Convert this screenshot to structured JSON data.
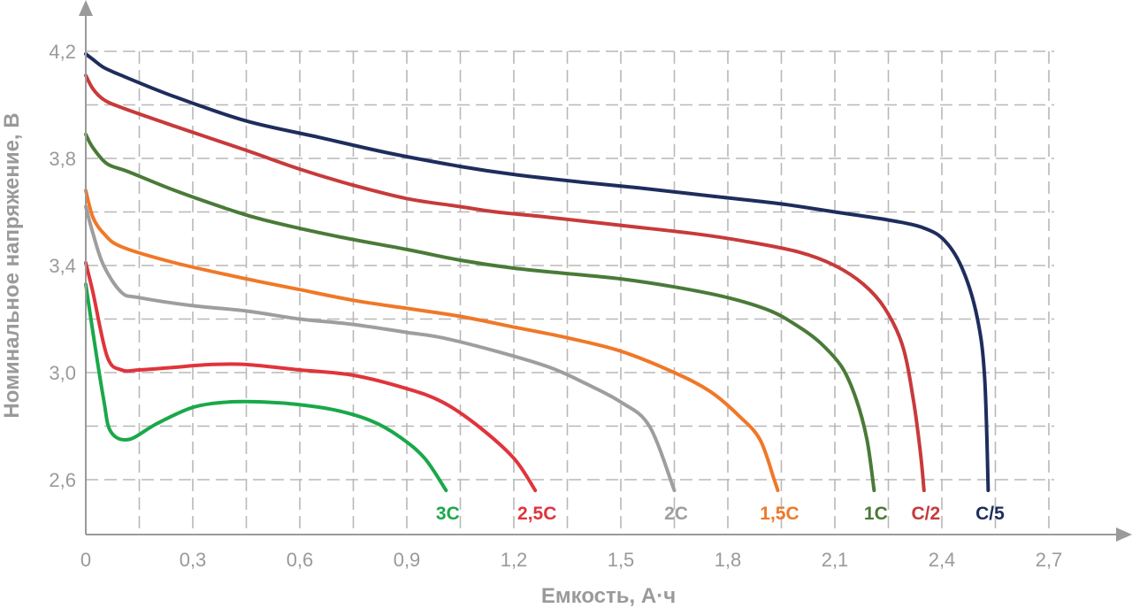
{
  "chart_data": {
    "type": "line",
    "xlabel": "Емкость, А·ч",
    "ylabel": "Номинальное напряжение, В",
    "xlim": [
      0,
      2.7
    ],
    "ylim": [
      2.45,
      4.3
    ],
    "x_ticks": [
      "0",
      "0,3",
      "0,6",
      "0,9",
      "1,2",
      "1,5",
      "1,8",
      "2,1",
      "2,4",
      "2,7"
    ],
    "x_tick_values": [
      0,
      0.3,
      0.6,
      0.9,
      1.2,
      1.5,
      1.8,
      2.1,
      2.4,
      2.7
    ],
    "y_ticks": [
      "2,6",
      "3,0",
      "3,4",
      "3,8",
      "4,2"
    ],
    "y_tick_values": [
      2.6,
      3.0,
      3.4,
      3.8,
      4.2
    ],
    "grid": true,
    "series": [
      {
        "name": "3C",
        "color": "#1aa84a",
        "points": [
          [
            0.0,
            3.33
          ],
          [
            0.02,
            3.15
          ],
          [
            0.05,
            2.9
          ],
          [
            0.07,
            2.78
          ],
          [
            0.12,
            2.75
          ],
          [
            0.2,
            2.81
          ],
          [
            0.3,
            2.87
          ],
          [
            0.4,
            2.89
          ],
          [
            0.5,
            2.89
          ],
          [
            0.6,
            2.88
          ],
          [
            0.7,
            2.86
          ],
          [
            0.8,
            2.82
          ],
          [
            0.88,
            2.76
          ],
          [
            0.95,
            2.68
          ],
          [
            1.01,
            2.56
          ]
        ]
      },
      {
        "name": "2,5C",
        "color": "#e0343c",
        "points": [
          [
            0.0,
            3.41
          ],
          [
            0.02,
            3.3
          ],
          [
            0.06,
            3.06
          ],
          [
            0.1,
            3.01
          ],
          [
            0.15,
            3.01
          ],
          [
            0.25,
            3.02
          ],
          [
            0.35,
            3.03
          ],
          [
            0.45,
            3.03
          ],
          [
            0.6,
            3.01
          ],
          [
            0.75,
            2.99
          ],
          [
            0.9,
            2.94
          ],
          [
            1.0,
            2.89
          ],
          [
            1.1,
            2.8
          ],
          [
            1.2,
            2.68
          ],
          [
            1.26,
            2.56
          ]
        ]
      },
      {
        "name": "2C",
        "color": "#9e9e9e",
        "points": [
          [
            0.0,
            3.62
          ],
          [
            0.02,
            3.52
          ],
          [
            0.05,
            3.4
          ],
          [
            0.1,
            3.3
          ],
          [
            0.15,
            3.28
          ],
          [
            0.3,
            3.25
          ],
          [
            0.45,
            3.23
          ],
          [
            0.6,
            3.2
          ],
          [
            0.75,
            3.18
          ],
          [
            0.9,
            3.15
          ],
          [
            1.0,
            3.13
          ],
          [
            1.15,
            3.08
          ],
          [
            1.3,
            3.02
          ],
          [
            1.4,
            2.96
          ],
          [
            1.5,
            2.89
          ],
          [
            1.58,
            2.8
          ],
          [
            1.65,
            2.56
          ]
        ]
      },
      {
        "name": "1,5C",
        "color": "#f07828",
        "points": [
          [
            0.0,
            3.68
          ],
          [
            0.02,
            3.58
          ],
          [
            0.05,
            3.52
          ],
          [
            0.1,
            3.47
          ],
          [
            0.25,
            3.41
          ],
          [
            0.45,
            3.35
          ],
          [
            0.6,
            3.31
          ],
          [
            0.75,
            3.27
          ],
          [
            0.9,
            3.24
          ],
          [
            1.05,
            3.21
          ],
          [
            1.2,
            3.17
          ],
          [
            1.35,
            3.13
          ],
          [
            1.5,
            3.08
          ],
          [
            1.65,
            3.0
          ],
          [
            1.75,
            2.93
          ],
          [
            1.83,
            2.84
          ],
          [
            1.89,
            2.75
          ],
          [
            1.93,
            2.6
          ],
          [
            1.94,
            2.56
          ]
        ]
      },
      {
        "name": "1C",
        "color": "#4a7a38",
        "points": [
          [
            0.0,
            3.89
          ],
          [
            0.02,
            3.84
          ],
          [
            0.06,
            3.78
          ],
          [
            0.12,
            3.75
          ],
          [
            0.25,
            3.68
          ],
          [
            0.4,
            3.61
          ],
          [
            0.5,
            3.57
          ],
          [
            0.7,
            3.51
          ],
          [
            0.9,
            3.46
          ],
          [
            1.05,
            3.42
          ],
          [
            1.2,
            3.39
          ],
          [
            1.35,
            3.37
          ],
          [
            1.5,
            3.35
          ],
          [
            1.65,
            3.32
          ],
          [
            1.8,
            3.28
          ],
          [
            1.92,
            3.23
          ],
          [
            2.0,
            3.17
          ],
          [
            2.06,
            3.11
          ],
          [
            2.12,
            3.02
          ],
          [
            2.16,
            2.9
          ],
          [
            2.19,
            2.75
          ],
          [
            2.21,
            2.56
          ]
        ]
      },
      {
        "name": "C/2",
        "color": "#c83a3a",
        "points": [
          [
            0.0,
            4.11
          ],
          [
            0.02,
            4.06
          ],
          [
            0.05,
            4.02
          ],
          [
            0.1,
            3.99
          ],
          [
            0.25,
            3.92
          ],
          [
            0.45,
            3.83
          ],
          [
            0.6,
            3.76
          ],
          [
            0.75,
            3.7
          ],
          [
            0.9,
            3.65
          ],
          [
            1.05,
            3.62
          ],
          [
            1.15,
            3.6
          ],
          [
            1.3,
            3.58
          ],
          [
            1.5,
            3.55
          ],
          [
            1.7,
            3.52
          ],
          [
            1.85,
            3.49
          ],
          [
            2.0,
            3.45
          ],
          [
            2.1,
            3.4
          ],
          [
            2.18,
            3.33
          ],
          [
            2.24,
            3.24
          ],
          [
            2.29,
            3.1
          ],
          [
            2.32,
            2.9
          ],
          [
            2.34,
            2.7
          ],
          [
            2.35,
            2.56
          ]
        ]
      },
      {
        "name": "C/5",
        "color": "#1e2d5c",
        "points": [
          [
            0.0,
            4.19
          ],
          [
            0.02,
            4.17
          ],
          [
            0.05,
            4.14
          ],
          [
            0.1,
            4.11
          ],
          [
            0.25,
            4.03
          ],
          [
            0.45,
            3.94
          ],
          [
            0.65,
            3.88
          ],
          [
            0.85,
            3.82
          ],
          [
            1.05,
            3.77
          ],
          [
            1.2,
            3.74
          ],
          [
            1.4,
            3.71
          ],
          [
            1.55,
            3.69
          ],
          [
            1.75,
            3.66
          ],
          [
            1.95,
            3.63
          ],
          [
            2.1,
            3.6
          ],
          [
            2.25,
            3.57
          ],
          [
            2.35,
            3.54
          ],
          [
            2.41,
            3.49
          ],
          [
            2.46,
            3.38
          ],
          [
            2.5,
            3.2
          ],
          [
            2.52,
            2.98
          ],
          [
            2.53,
            2.56
          ]
        ]
      }
    ]
  }
}
